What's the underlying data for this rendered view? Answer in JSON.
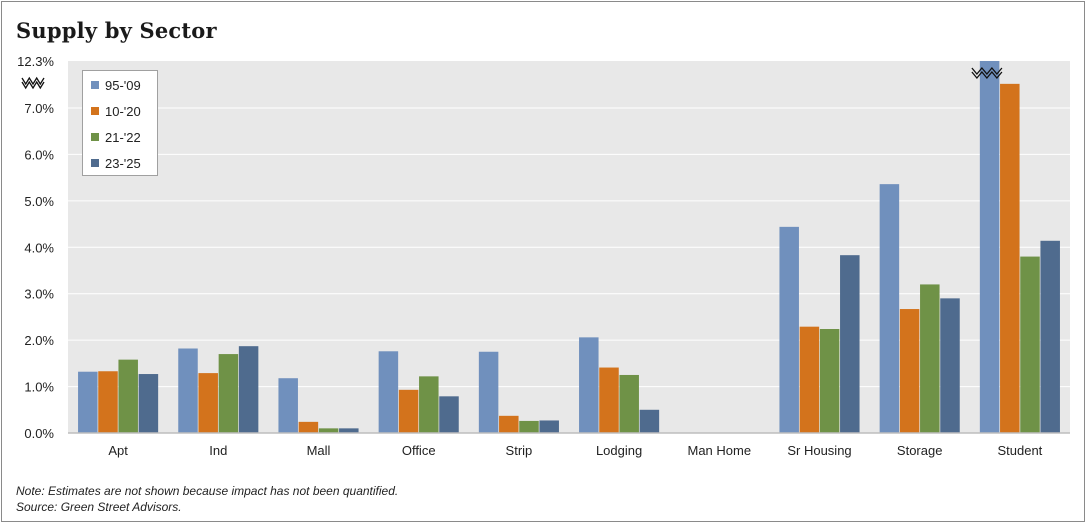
{
  "title": "Supply by Sector",
  "notes": [
    "Note: Estimates are not shown because impact has not been quantified.",
    "Source: Green Street Advisors."
  ],
  "colors": {
    "plot_bg": "#e8e8e8",
    "grid": "#ffffff",
    "series": [
      "#7090bd",
      "#d3731c",
      "#6f9247",
      "#4f6b8e"
    ]
  },
  "chart_data": {
    "type": "bar",
    "title": "Supply by Sector",
    "categories": [
      "Apt",
      "Ind",
      "Mall",
      "Office",
      "Strip",
      "Lodging",
      "Man Home",
      "Sr Housing",
      "Storage",
      "Student"
    ],
    "series": [
      {
        "name": "95-'09",
        "values": [
          1.32,
          1.82,
          1.18,
          1.76,
          1.75,
          2.06,
          0.0,
          4.44,
          5.36,
          12.3
        ]
      },
      {
        "name": "10-'20",
        "values": [
          1.33,
          1.29,
          0.24,
          0.93,
          0.37,
          1.41,
          0.0,
          2.29,
          2.67,
          7.52
        ]
      },
      {
        "name": "21-'22",
        "values": [
          1.58,
          1.7,
          0.1,
          1.22,
          0.26,
          1.25,
          0.0,
          2.24,
          3.2,
          3.8
        ]
      },
      {
        "name": "23-'25",
        "values": [
          1.27,
          1.87,
          0.1,
          0.79,
          0.27,
          0.5,
          0.0,
          3.83,
          2.9,
          4.14
        ]
      }
    ],
    "yticks": [
      "0.0%",
      "1.0%",
      "2.0%",
      "3.0%",
      "4.0%",
      "5.0%",
      "6.0%",
      "7.0%",
      "12.3%"
    ],
    "ylim": [
      0,
      8
    ],
    "axis_break": true,
    "grid": true,
    "legend_position": "top-left"
  }
}
